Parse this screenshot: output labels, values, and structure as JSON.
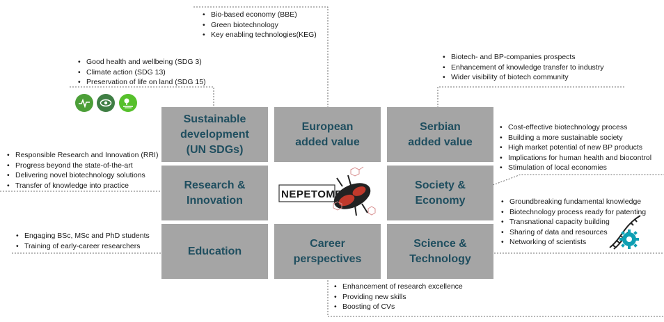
{
  "tiles": {
    "sdg": "Sustainable\ndevelopment\n(UN SDGs)",
    "eu": "European\nadded value",
    "serbian": "Serbian\nadded value",
    "research": "Research &\nInnovation",
    "society": "Society &\nEconomy",
    "education": "Education",
    "career": "Career\nperspectives",
    "science": "Science &\nTechnology"
  },
  "logo": {
    "text": "NEPETOME"
  },
  "lists": {
    "eu": [
      "Bio-based economy (BBE)",
      "Green biotechnology",
      "Key enabling technologies(KEG)"
    ],
    "sdg": [
      "Good health and wellbeing (SDG 3)",
      "Climate action (SDG 13)",
      "Preservation of life on land (SDG 15)"
    ],
    "serbian": [
      "Biotech- and BP-companies prospects",
      "Enhancement of knowledge transfer to industry",
      "Wider visibility of biotech community"
    ],
    "society": [
      "Cost-effective biotechnology process",
      "Building a more sustainable society",
      "High market potential of new BP products",
      "Implications for human health and biocontrol",
      "Stimulation of local economies"
    ],
    "research": [
      "Responsible Research and Innovation (RRI)",
      "Progress beyond the state-of-the-art",
      "Delivering novel biotechnology solutions",
      "Transfer of knowledge into practice"
    ],
    "science": [
      "Groundbreaking fundamental knowledge",
      "Biotechnology process ready for patenting",
      "Transnational capacity building",
      "Sharing of data and resources",
      "Networking of scientists"
    ],
    "education": [
      "Engaging BSc, MSc and PhD students",
      "Training of early-career researchers"
    ],
    "career": [
      "Enhancement of research excellence",
      "Providing new skills",
      "Boosting of CVs"
    ]
  },
  "colors": {
    "tile": "#a5a5a5",
    "tile_text": "#1f4e5f",
    "sdg3": "#4c9f38",
    "sdg13": "#3f7e44",
    "sdg15": "#56c02b",
    "gear": "#0e9fb3"
  },
  "icons": [
    "sdg3-health-icon",
    "sdg13-climate-eye-icon",
    "sdg15-life-on-land-icon",
    "dna-gear-icon"
  ]
}
